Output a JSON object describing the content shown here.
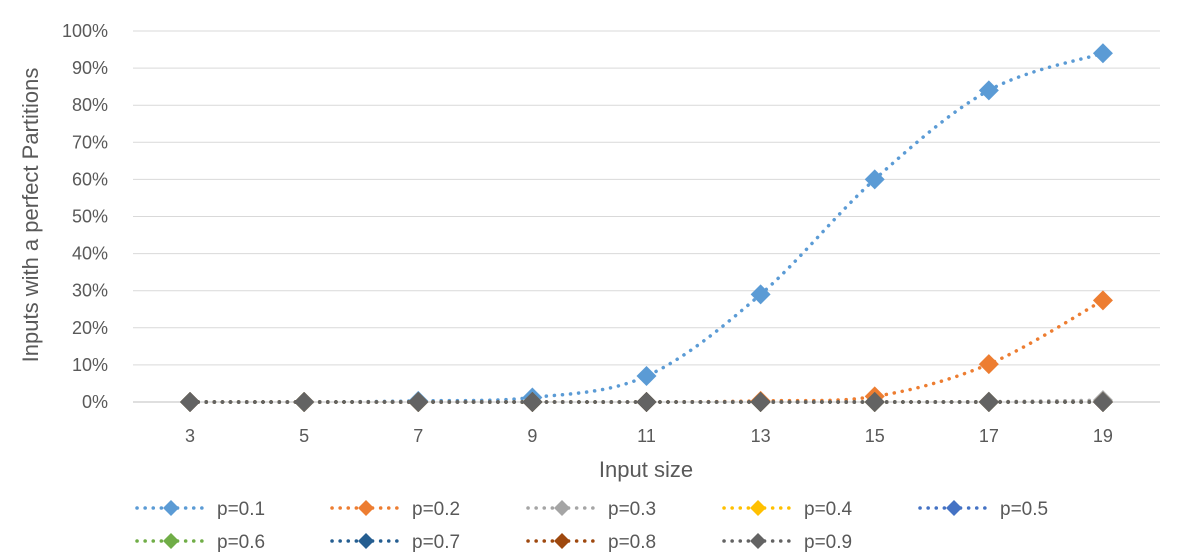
{
  "chart_data": {
    "type": "line",
    "title": "",
    "xlabel": "Input size",
    "ylabel": "Inputs with a perfect Partitions",
    "categories": [
      "3",
      "5",
      "7",
      "9",
      "11",
      "13",
      "15",
      "17",
      "19"
    ],
    "ylim": [
      0,
      100
    ],
    "y_ticks": [
      "0%",
      "10%",
      "20%",
      "30%",
      "40%",
      "50%",
      "60%",
      "70%",
      "80%",
      "90%",
      "100%"
    ],
    "grid": true,
    "legend_position": "bottom",
    "series": [
      {
        "name": "p=0.1",
        "color": "#5B9BD5",
        "values": [
          0,
          0,
          0.3,
          1.2,
          7,
          29,
          60,
          84,
          94
        ]
      },
      {
        "name": "p=0.2",
        "color": "#ED7D31",
        "values": [
          0,
          0,
          0,
          0,
          0,
          0.3,
          1.5,
          10.2,
          27.4
        ]
      },
      {
        "name": "p=0.3",
        "color": "#A5A5A5",
        "values": [
          0,
          0,
          0,
          0,
          0,
          0,
          0,
          0.1,
          0.5
        ]
      },
      {
        "name": "p=0.4",
        "color": "#FFC000",
        "values": [
          0,
          0,
          0,
          0,
          0,
          0,
          0,
          0,
          0
        ]
      },
      {
        "name": "p=0.5",
        "color": "#4472C4",
        "values": [
          0,
          0,
          0,
          0,
          0,
          0,
          0,
          0,
          0
        ]
      },
      {
        "name": "p=0.6",
        "color": "#70AD47",
        "values": [
          0,
          0,
          0,
          0,
          0,
          0,
          0,
          0,
          0
        ]
      },
      {
        "name": "p=0.7",
        "color": "#255E91",
        "values": [
          0,
          0,
          0,
          0,
          0,
          0,
          0,
          0,
          0
        ]
      },
      {
        "name": "p=0.8",
        "color": "#9E480E",
        "values": [
          0,
          0,
          0,
          0,
          0,
          0,
          0,
          0,
          0
        ]
      },
      {
        "name": "p=0.9",
        "color": "#636363",
        "values": [
          0,
          0,
          0,
          0,
          0,
          0,
          0,
          0,
          0
        ]
      }
    ]
  }
}
